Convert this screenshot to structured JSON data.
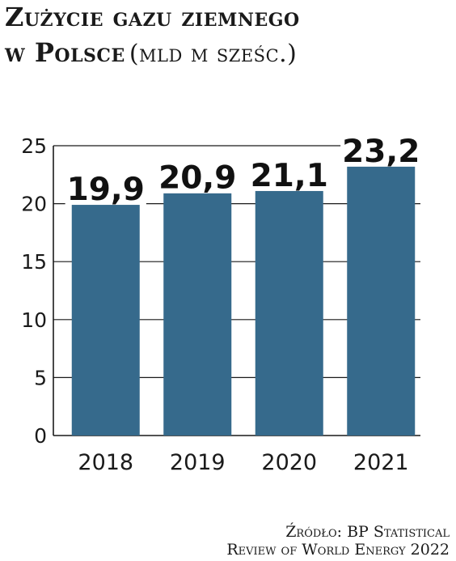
{
  "chart_data": {
    "type": "bar",
    "title_line1": "Zużycie gazu ziemnego",
    "title_line2": "w Polsce",
    "unit": "(mld m sześc.)",
    "categories": [
      "2018",
      "2019",
      "2020",
      "2021"
    ],
    "values": [
      19.9,
      20.9,
      21.1,
      23.2
    ],
    "value_labels": [
      "19,9",
      "20,9",
      "21,1",
      "23,2"
    ],
    "yticks": [
      "0",
      "5",
      "10",
      "15",
      "20",
      "25"
    ],
    "ylim": [
      0,
      25
    ],
    "grid": true,
    "bar_color": "#366a8c",
    "grid_color": "#1a1a1a",
    "xlabel": "",
    "ylabel": ""
  },
  "source": {
    "line1": "Źródło: BP Statistical",
    "line2": "Review of World Energy 2022"
  }
}
